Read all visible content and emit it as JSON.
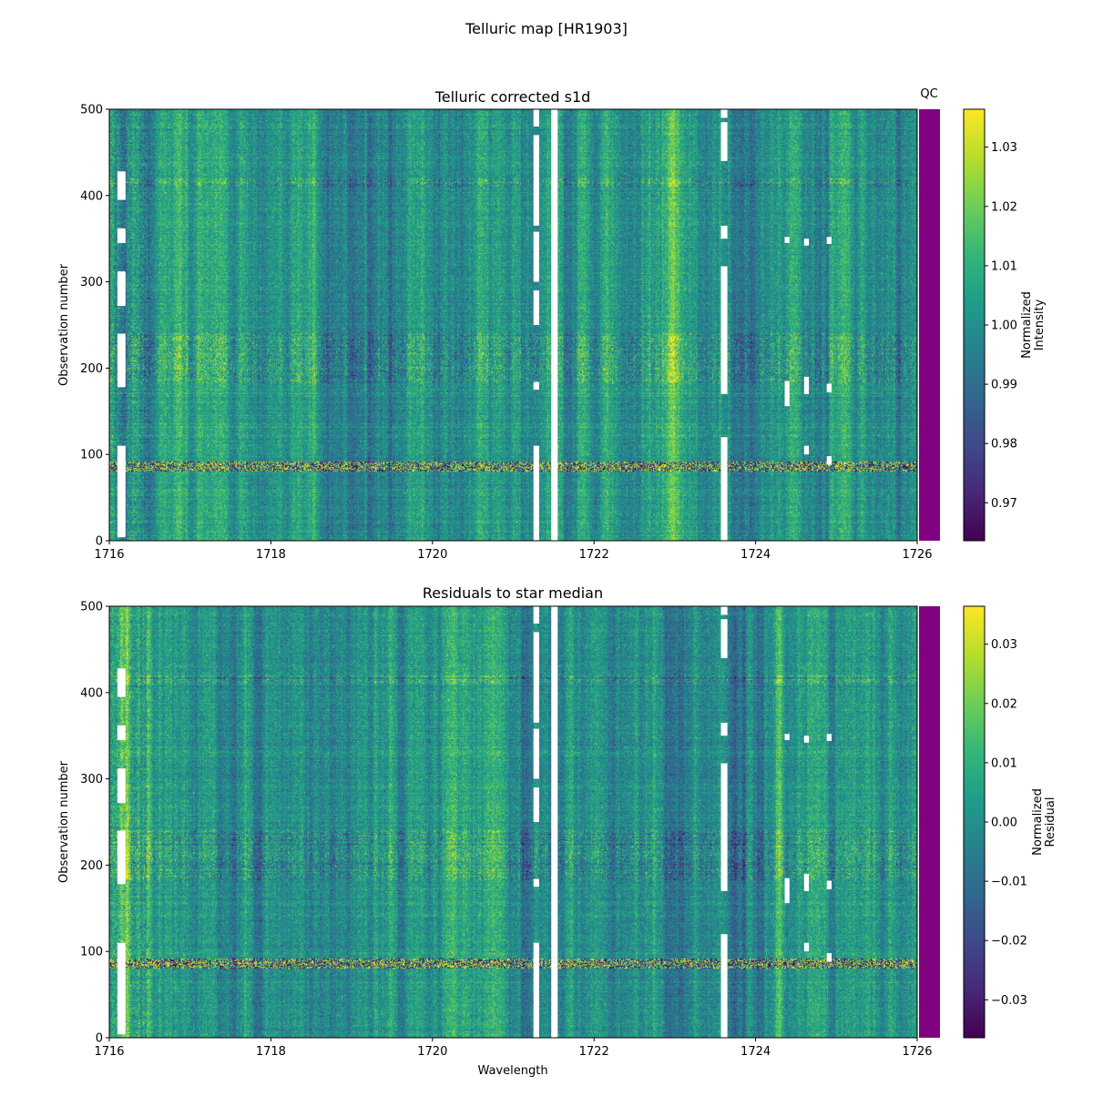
{
  "figure": {
    "suptitle": "Telluric map [HR1903]"
  },
  "chart_data": [
    {
      "type": "heatmap",
      "title": "Telluric corrected s1d",
      "xlabel": "",
      "ylabel": "Observation number",
      "xlim": [
        1716,
        1726
      ],
      "ylim": [
        0,
        500
      ],
      "xticks": [
        "1716",
        "1718",
        "1720",
        "1722",
        "1724",
        "1726"
      ],
      "yticks": [
        "0",
        "100",
        "200",
        "300",
        "400",
        "500"
      ],
      "colormap": "viridis",
      "center_value": 1.0,
      "colorbar": {
        "label": "Normalized\nIntensity",
        "range": [
          0.9636,
          1.0364
        ],
        "ticks": [
          "0.97",
          "0.98",
          "0.99",
          "1.00",
          "1.01",
          "1.02",
          "1.03"
        ],
        "tick_values": [
          0.97,
          0.98,
          0.99,
          1.0,
          1.01,
          1.02,
          1.03
        ]
      },
      "qc": {
        "label": "QC",
        "color": "#800080"
      }
    },
    {
      "type": "heatmap",
      "title": "Residuals to star median",
      "xlabel": "Wavelength",
      "ylabel": "Observation number",
      "xlim": [
        1716,
        1726
      ],
      "ylim": [
        0,
        500
      ],
      "xticks": [
        "1716",
        "1718",
        "1720",
        "1722",
        "1724",
        "1726"
      ],
      "yticks": [
        "0",
        "100",
        "200",
        "300",
        "400",
        "500"
      ],
      "colormap": "viridis",
      "center_value": 0.0,
      "colorbar": {
        "label": "Normalized\nResidual",
        "range": [
          -0.0364,
          0.0364
        ],
        "ticks": [
          "−0.03",
          "−0.02",
          "−0.01",
          "0.00",
          "0.01",
          "0.02",
          "0.03"
        ],
        "tick_values": [
          -0.03,
          -0.02,
          -0.01,
          0.0,
          0.01,
          0.02,
          0.03
        ]
      },
      "qc": {
        "label": "",
        "color": "#800080"
      }
    }
  ],
  "structure": {
    "noisy_row_band": [
      80,
      92
    ],
    "strong_row_bands": [
      [
        183,
        240
      ],
      [
        410,
        420
      ]
    ],
    "masked_columns": [
      {
        "x": [
          1716.1,
          1716.2
        ],
        "gaps": [
          [
            0,
            4
          ],
          [
            110,
            178
          ],
          [
            240,
            272
          ],
          [
            312,
            345
          ],
          [
            362,
            395
          ],
          [
            428,
            500
          ]
        ]
      },
      {
        "x": [
          1721.25,
          1721.32
        ],
        "gaps": [
          [
            110,
            175
          ],
          [
            184,
            250
          ],
          [
            290,
            300
          ],
          [
            358,
            365
          ],
          [
            470,
            480
          ]
        ]
      },
      {
        "x": [
          1721.47,
          1721.55
        ],
        "gaps": []
      },
      {
        "x": [
          1723.57,
          1723.65
        ],
        "gaps": [
          [
            120,
            170
          ],
          [
            318,
            350
          ],
          [
            365,
            440
          ],
          [
            485,
            490
          ]
        ]
      },
      {
        "x": [
          1724.36,
          1724.42
        ],
        "gaps": [
          [
            0,
            156
          ],
          [
            185,
            345
          ],
          [
            352,
            500
          ]
        ]
      },
      {
        "x": [
          1724.6,
          1724.66
        ],
        "gaps": [
          [
            0,
            100
          ],
          [
            110,
            170
          ],
          [
            190,
            342
          ],
          [
            350,
            500
          ]
        ]
      },
      {
        "x": [
          1724.88,
          1724.94
        ],
        "gaps": [
          [
            0,
            88
          ],
          [
            98,
            172
          ],
          [
            182,
            344
          ],
          [
            352,
            500
          ]
        ]
      }
    ]
  }
}
